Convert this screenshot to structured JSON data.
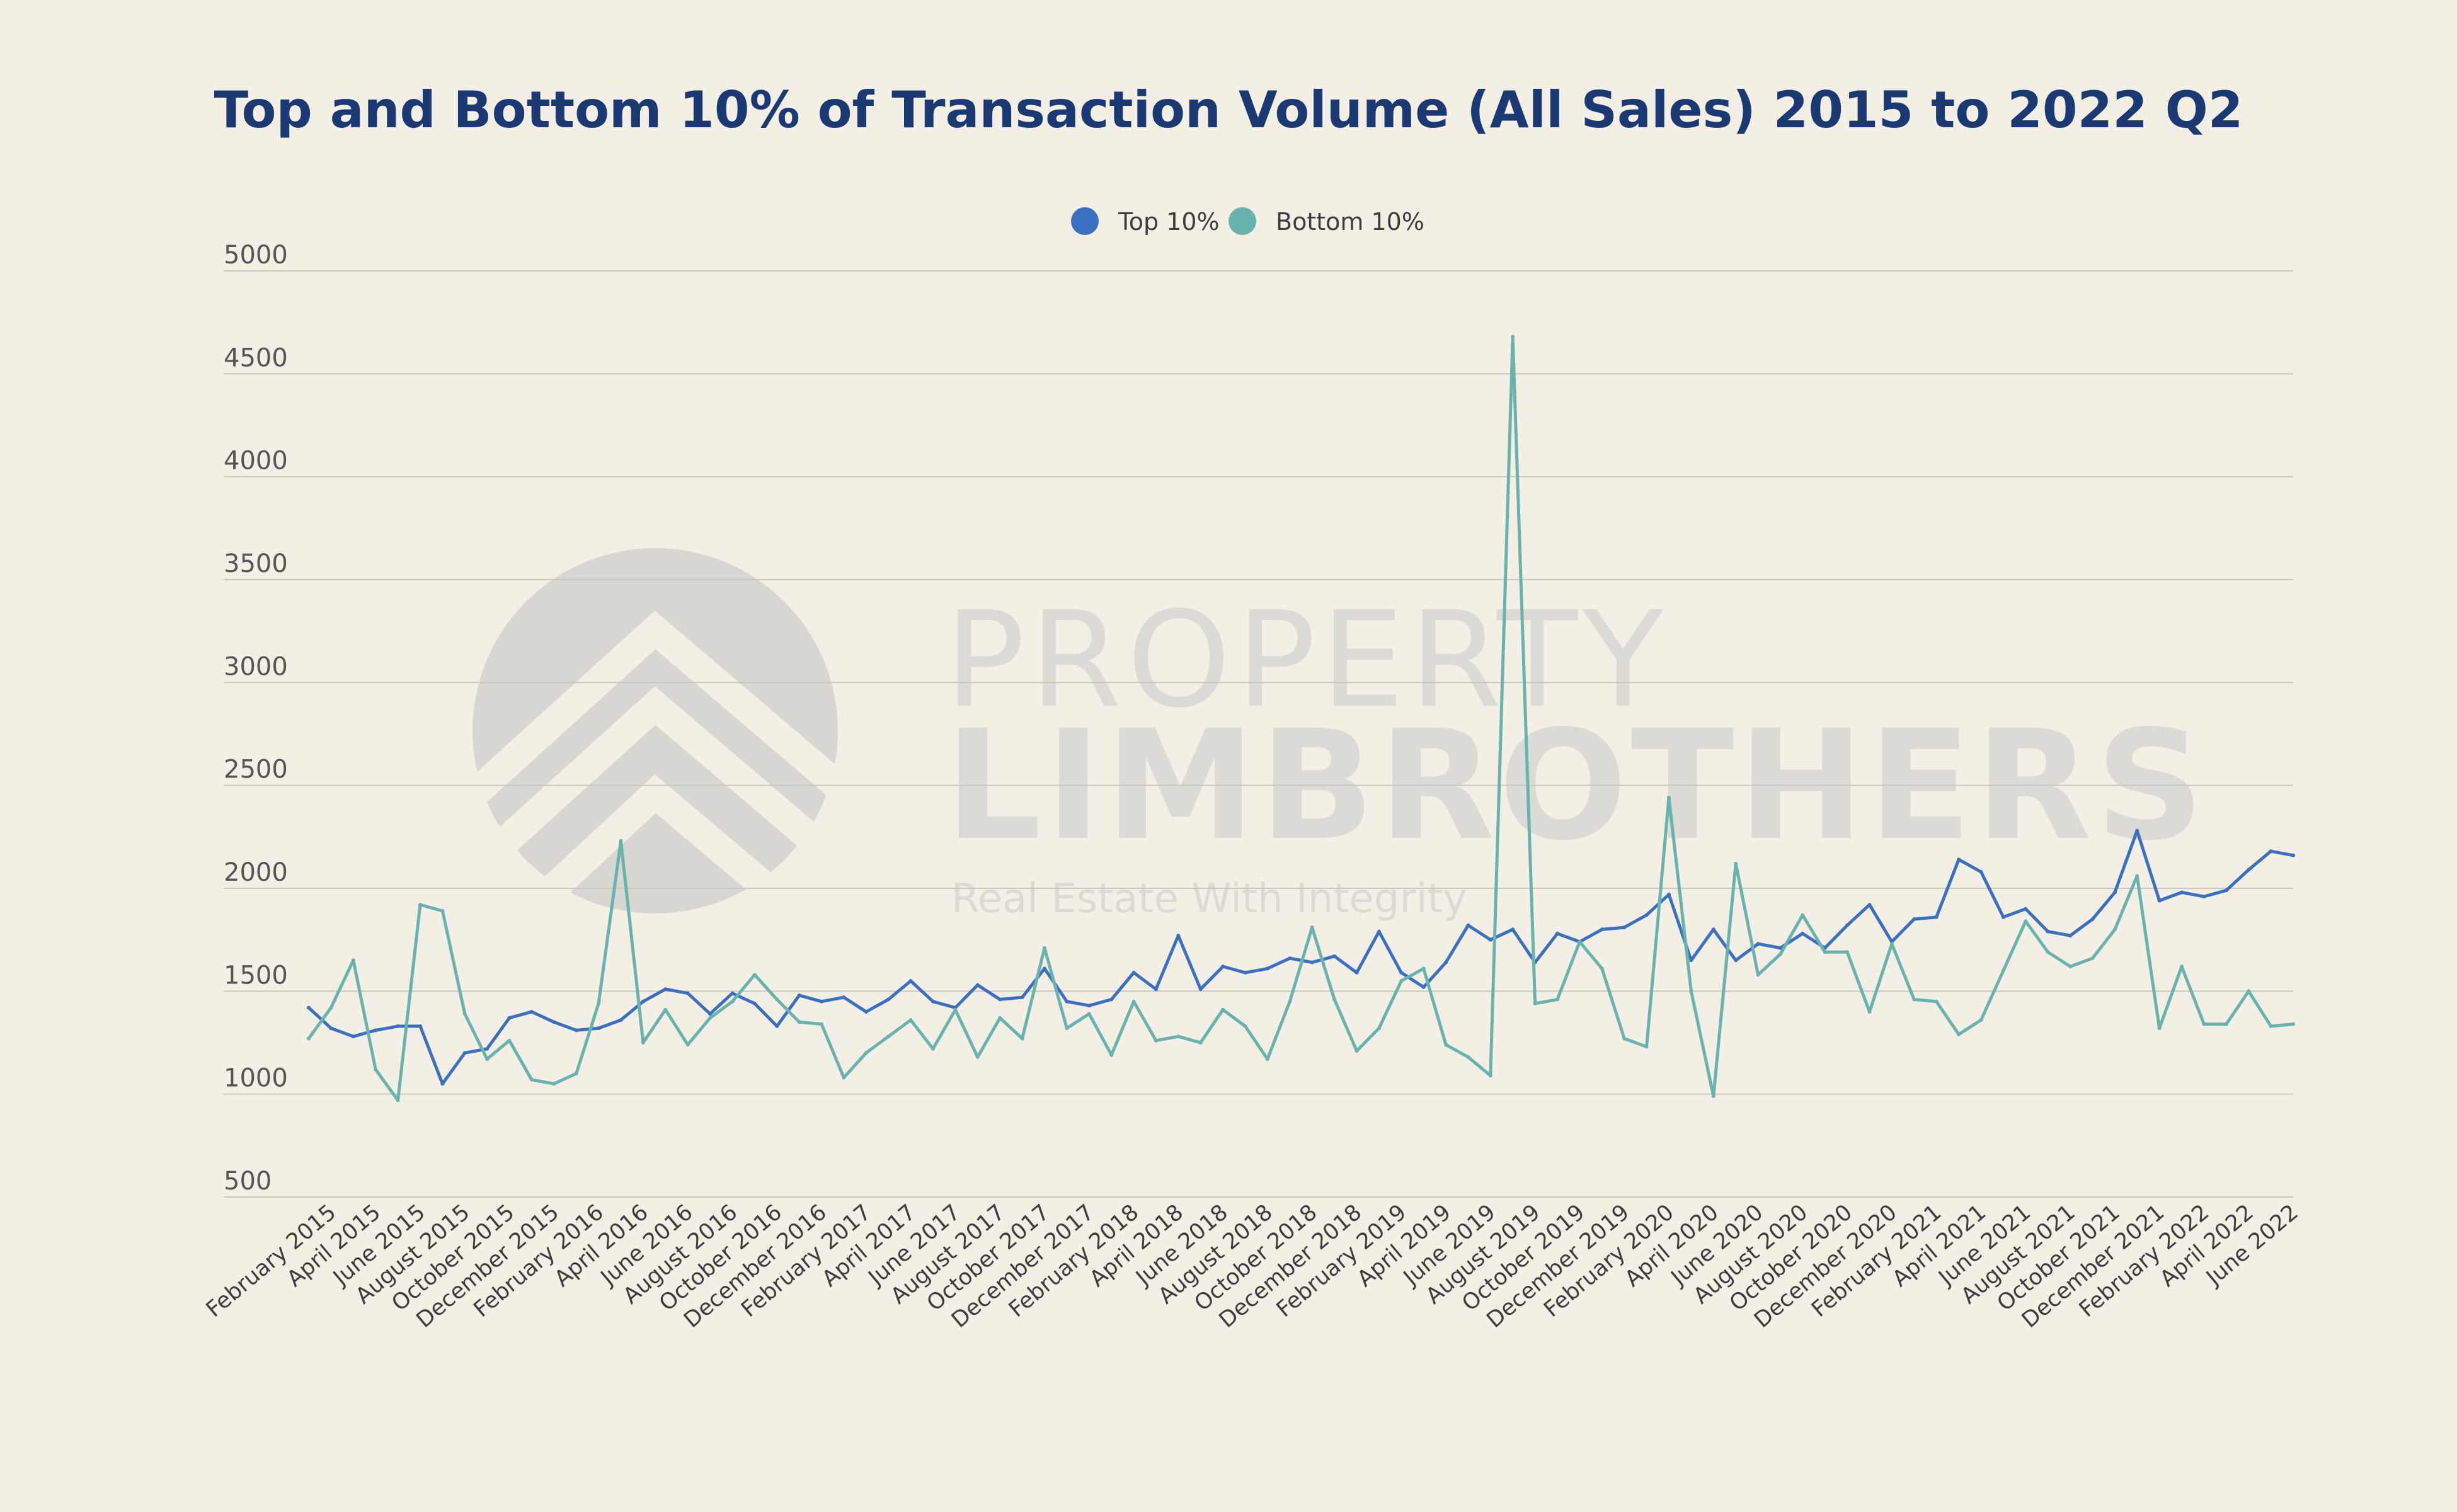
{
  "chart_data": {
    "type": "line",
    "title": "Top and Bottom 10% of Transaction Volume (All Sales) 2015 to 2022 Q2",
    "xlabel": "",
    "ylabel": "",
    "ylim": [
      500,
      5000
    ],
    "yticks": [
      500,
      1000,
      1500,
      2000,
      2500,
      3000,
      3500,
      4000,
      4500,
      5000
    ],
    "grid": true,
    "legend_position": "top-center",
    "x": [
      "January 2015",
      "February 2015",
      "March 2015",
      "April 2015",
      "May 2015",
      "June 2015",
      "July 2015",
      "August 2015",
      "September 2015",
      "October 2015",
      "November 2015",
      "December 2015",
      "January 2016",
      "February 2016",
      "March 2016",
      "April 2016",
      "May 2016",
      "June 2016",
      "July 2016",
      "August 2016",
      "September 2016",
      "October 2016",
      "November 2016",
      "December 2016",
      "January 2017",
      "February 2017",
      "March 2017",
      "April 2017",
      "May 2017",
      "June 2017",
      "July 2017",
      "August 2017",
      "September 2017",
      "October 2017",
      "November 2017",
      "December 2017",
      "January 2018",
      "February 2018",
      "March 2018",
      "April 2018",
      "May 2018",
      "June 2018",
      "July 2018",
      "August 2018",
      "September 2018",
      "October 2018",
      "November 2018",
      "December 2018",
      "January 2019",
      "February 2019",
      "March 2019",
      "April 2019",
      "May 2019",
      "June 2019",
      "July 2019",
      "August 2019",
      "September 2019",
      "October 2019",
      "November 2019",
      "December 2019",
      "January 2020",
      "February 2020",
      "March 2020",
      "April 2020",
      "May 2020",
      "June 2020",
      "July 2020",
      "August 2020",
      "September 2020",
      "October 2020",
      "November 2020",
      "December 2020",
      "January 2021",
      "February 2021",
      "March 2021",
      "April 2021",
      "May 2021",
      "June 2021",
      "July 2021",
      "August 2021",
      "September 2021",
      "October 2021",
      "November 2021",
      "December 2021",
      "January 2022",
      "February 2022",
      "March 2022",
      "April 2022",
      "May 2022",
      "June 2022"
    ],
    "tick_labels": [
      "February 2015",
      "April 2015",
      "June 2015",
      "August 2015",
      "October 2015",
      "December 2015",
      "February 2016",
      "April 2016",
      "June 2016",
      "August 2016",
      "October 2016",
      "December 2016",
      "February 2017",
      "April 2017",
      "June 2017",
      "August 2017",
      "October 2017",
      "December 2017",
      "February 2018",
      "April 2018",
      "June 2018",
      "August 2018",
      "October 2018",
      "December 2018",
      "February 2019",
      "April 2019",
      "June 2019",
      "August 2019",
      "October 2019",
      "December 2019",
      "February 2020",
      "April 2020",
      "June 2020",
      "August 2020",
      "October 2020",
      "December 2020",
      "February 2021",
      "April 2021",
      "June 2021",
      "August 2021",
      "October 2021",
      "December 2021",
      "February 2022",
      "April 2022",
      "June 2022"
    ],
    "series": [
      {
        "name": "Top 10%",
        "color": "#3b6fc2",
        "values": [
          1420,
          1320,
          1280,
          1310,
          1330,
          1330,
          1050,
          1200,
          1220,
          1370,
          1400,
          1350,
          1310,
          1320,
          1360,
          1450,
          1510,
          1490,
          1390,
          1490,
          1440,
          1330,
          1480,
          1450,
          1470,
          1400,
          1460,
          1550,
          1450,
          1420,
          1530,
          1460,
          1470,
          1610,
          1450,
          1430,
          1460,
          1590,
          1510,
          1770,
          1510,
          1620,
          1590,
          1610,
          1660,
          1640,
          1670,
          1590,
          1790,
          1590,
          1520,
          1640,
          1820,
          1750,
          1800,
          1640,
          1780,
          1740,
          1800,
          1810,
          1870,
          1970,
          1650,
          1800,
          1650,
          1730,
          1710,
          1780,
          1710,
          1820,
          1920,
          1740,
          1850,
          1860,
          2140,
          2080,
          1860,
          1900,
          1790,
          1770,
          1850,
          1980,
          2280,
          1940,
          1980,
          1960,
          1990,
          2090,
          2180,
          2160
        ]
      },
      {
        "name": "Bottom 10%",
        "color": "#68b3ad",
        "values": [
          1270,
          1420,
          1650,
          1120,
          970,
          1920,
          1890,
          1390,
          1170,
          1260,
          1070,
          1050,
          1100,
          1440,
          2230,
          1250,
          1410,
          1240,
          1370,
          1450,
          1580,
          1460,
          1350,
          1340,
          1080,
          1200,
          1280,
          1360,
          1220,
          1410,
          1180,
          1370,
          1270,
          1710,
          1320,
          1390,
          1190,
          1450,
          1260,
          1280,
          1250,
          1410,
          1330,
          1170,
          1450,
          1810,
          1460,
          1210,
          1320,
          1550,
          1610,
          1240,
          1180,
          1090,
          4680,
          1440,
          1460,
          1740,
          1610,
          1270,
          1230,
          2440,
          1500,
          990,
          2120,
          1580,
          1680,
          1870,
          1690,
          1690,
          1400,
          1730,
          1460,
          1450,
          1290,
          1360,
          1600,
          1840,
          1690,
          1620,
          1660,
          1800,
          2060,
          1320,
          1620,
          1340,
          1340,
          1500,
          1330,
          1340
        ]
      }
    ]
  },
  "watermark": {
    "line1": "PROPERTY",
    "line2": "LIMBROTHERS",
    "tagline": "Real Estate With Integrity"
  }
}
